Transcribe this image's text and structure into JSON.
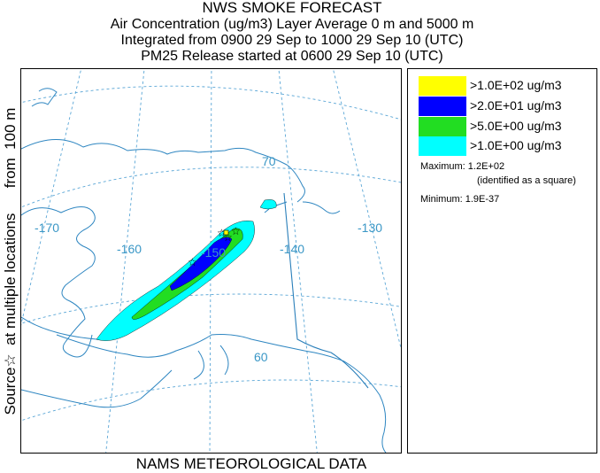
{
  "header": {
    "line1": "NWS SMOKE FORECAST",
    "line2": "Air Concentration (ug/m3) Layer Average    0 m and  5000 m",
    "line3": "Integrated from 0900 29 Sep to 1000 29 Sep 10 (UTC)",
    "line4": "PM25 Release started at 0600 29 Sep 10 (UTC)"
  },
  "side_label": "Source☆  at multiple locations      from  100 m",
  "footer": "NAMS METEOROLOGICAL DATA",
  "map": {
    "longitude_labels": [
      "-170",
      "-160",
      "-150",
      "-140",
      "-130"
    ],
    "latitude_labels": [
      "70",
      "60"
    ]
  },
  "legend": {
    "entries": [
      {
        "label": ">1.0E+02 ug/m3",
        "color": "#ffff00"
      },
      {
        "label": ">2.0E+01 ug/m3",
        "color": "#0000ff"
      },
      {
        "label": ">5.0E+00 ug/m3",
        "color": "#22dd22"
      },
      {
        "label": ">1.0E+00 ug/m3",
        "color": "#00ffff"
      }
    ],
    "maximum_label": "Maximum: 1.2E+02",
    "maximum_note": "(identified as a square)",
    "minimum_label": "Minimum: 1.9E-37"
  },
  "colors": {
    "coast": "#2e86c1",
    "grid": "#5aa6d6",
    "border": "#2a7fba"
  }
}
